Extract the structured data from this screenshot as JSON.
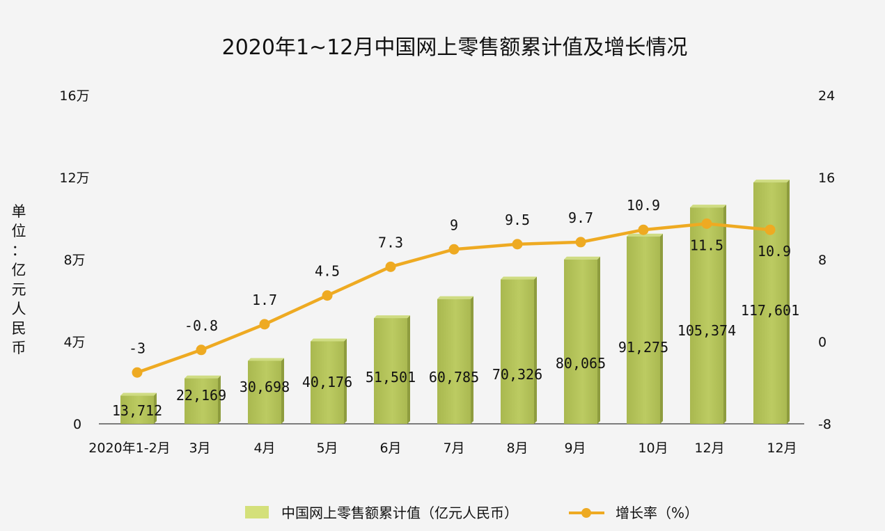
{
  "chart_data": {
    "type": "bar",
    "title": "2020年1~12月中国网上零售额累计值及增长情况",
    "ylabel": "单位：亿元人民币",
    "categories": [
      "2020年1-2月",
      "3月",
      "4月",
      "5月",
      "6月",
      "7月",
      "8月",
      "9月",
      "10月",
      "12月",
      "12月"
    ],
    "series": [
      {
        "name": "中国网上零售额累计值（亿元人民币）",
        "type": "bar",
        "axis": "left",
        "values": [
          13712,
          22169,
          30698,
          40176,
          51501,
          60785,
          70326,
          80065,
          91275,
          105374,
          117601
        ],
        "labels": [
          "13,712",
          "22,169",
          "30,698",
          "40,176",
          "51,501",
          "60,785",
          "70,326",
          "80,065",
          "91,275",
          "105,374",
          "117,601"
        ],
        "color": "#b5c35c"
      },
      {
        "name": "增长率（%）",
        "type": "line",
        "axis": "right",
        "values": [
          -3,
          -0.8,
          1.7,
          4.5,
          7.3,
          9,
          9.5,
          9.7,
          10.9,
          11.5,
          10.9
        ],
        "labels": [
          "-3",
          "-0.8",
          "1.7",
          "4.5",
          "7.3",
          "9",
          "9.5",
          "9.7",
          "10.9",
          "11.5",
          "10.9"
        ],
        "color": "#eeaa22"
      }
    ],
    "y_left": {
      "range": [
        0,
        160000
      ],
      "ticks": [
        0,
        40000,
        80000,
        120000,
        160000
      ],
      "tick_labels": [
        "0",
        "4万",
        "8万",
        "12万",
        "16万"
      ]
    },
    "y_right": {
      "range": [
        -8,
        24
      ],
      "ticks": [
        -8,
        0,
        8,
        16,
        24
      ],
      "tick_labels": [
        "-8",
        "0",
        "8",
        "16",
        "24"
      ]
    },
    "grid": false,
    "legend": "bottom"
  }
}
